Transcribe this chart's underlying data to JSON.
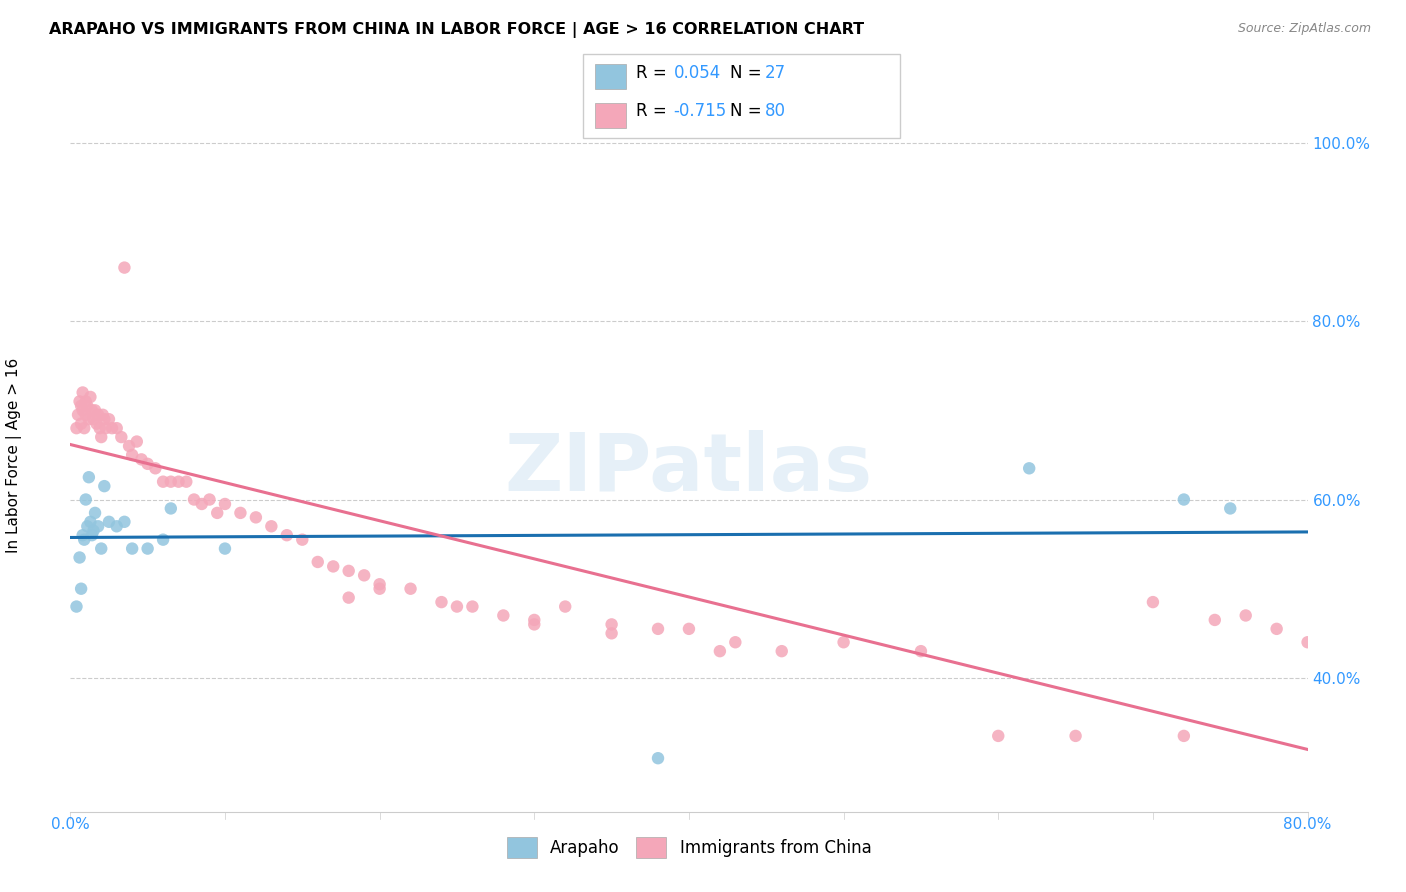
{
  "title": "ARAPAHO VS IMMIGRANTS FROM CHINA IN LABOR FORCE | AGE > 16 CORRELATION CHART",
  "source": "Source: ZipAtlas.com",
  "ylabel": "In Labor Force | Age > 16",
  "xlim": [
    0.0,
    0.8
  ],
  "ylim": [
    0.25,
    1.05
  ],
  "xticks": [
    0.0,
    0.1,
    0.2,
    0.3,
    0.4,
    0.5,
    0.6,
    0.7,
    0.8
  ],
  "yticks": [
    0.4,
    0.6,
    0.8,
    1.0
  ],
  "arapaho_color": "#92c5de",
  "china_color": "#f4a7b9",
  "arapaho_line_color": "#1a6faf",
  "china_line_color": "#e87090",
  "tick_color": "#3399ff",
  "watermark": "ZIPatlas",
  "legend_R1": "0.054",
  "legend_N1": "27",
  "legend_R2": "-0.715",
  "legend_N2": "80",
  "background_color": "#ffffff",
  "grid_color": "#cccccc",
  "arapaho_x": [
    0.004,
    0.006,
    0.007,
    0.008,
    0.009,
    0.01,
    0.011,
    0.012,
    0.013,
    0.014,
    0.015,
    0.016,
    0.018,
    0.02,
    0.022,
    0.025,
    0.03,
    0.035,
    0.04,
    0.05,
    0.06,
    0.065,
    0.1,
    0.38,
    0.62,
    0.72,
    0.75
  ],
  "arapaho_y": [
    0.48,
    0.535,
    0.5,
    0.56,
    0.555,
    0.6,
    0.57,
    0.625,
    0.575,
    0.56,
    0.565,
    0.585,
    0.57,
    0.545,
    0.615,
    0.575,
    0.57,
    0.575,
    0.545,
    0.545,
    0.555,
    0.59,
    0.545,
    0.31,
    0.635,
    0.6,
    0.59
  ],
  "china_x": [
    0.004,
    0.005,
    0.006,
    0.007,
    0.007,
    0.008,
    0.008,
    0.009,
    0.01,
    0.01,
    0.011,
    0.012,
    0.013,
    0.014,
    0.015,
    0.016,
    0.017,
    0.018,
    0.019,
    0.02,
    0.021,
    0.022,
    0.023,
    0.025,
    0.027,
    0.03,
    0.033,
    0.035,
    0.038,
    0.04,
    0.043,
    0.046,
    0.05,
    0.055,
    0.06,
    0.065,
    0.07,
    0.075,
    0.08,
    0.085,
    0.09,
    0.095,
    0.1,
    0.11,
    0.12,
    0.13,
    0.14,
    0.15,
    0.16,
    0.17,
    0.18,
    0.19,
    0.2,
    0.22,
    0.24,
    0.26,
    0.28,
    0.3,
    0.32,
    0.35,
    0.38,
    0.4,
    0.43,
    0.46,
    0.5,
    0.55,
    0.6,
    0.65,
    0.7,
    0.72,
    0.74,
    0.76,
    0.78,
    0.8,
    0.2,
    0.25,
    0.3,
    0.35,
    0.18,
    0.42
  ],
  "china_y": [
    0.68,
    0.695,
    0.71,
    0.685,
    0.705,
    0.7,
    0.72,
    0.68,
    0.695,
    0.71,
    0.705,
    0.69,
    0.715,
    0.7,
    0.69,
    0.7,
    0.685,
    0.695,
    0.68,
    0.67,
    0.695,
    0.69,
    0.68,
    0.69,
    0.68,
    0.68,
    0.67,
    0.86,
    0.66,
    0.65,
    0.665,
    0.645,
    0.64,
    0.635,
    0.62,
    0.62,
    0.62,
    0.62,
    0.6,
    0.595,
    0.6,
    0.585,
    0.595,
    0.585,
    0.58,
    0.57,
    0.56,
    0.555,
    0.53,
    0.525,
    0.52,
    0.515,
    0.505,
    0.5,
    0.485,
    0.48,
    0.47,
    0.465,
    0.48,
    0.46,
    0.455,
    0.455,
    0.44,
    0.43,
    0.44,
    0.43,
    0.335,
    0.335,
    0.485,
    0.335,
    0.465,
    0.47,
    0.455,
    0.44,
    0.5,
    0.48,
    0.46,
    0.45,
    0.49,
    0.43
  ]
}
